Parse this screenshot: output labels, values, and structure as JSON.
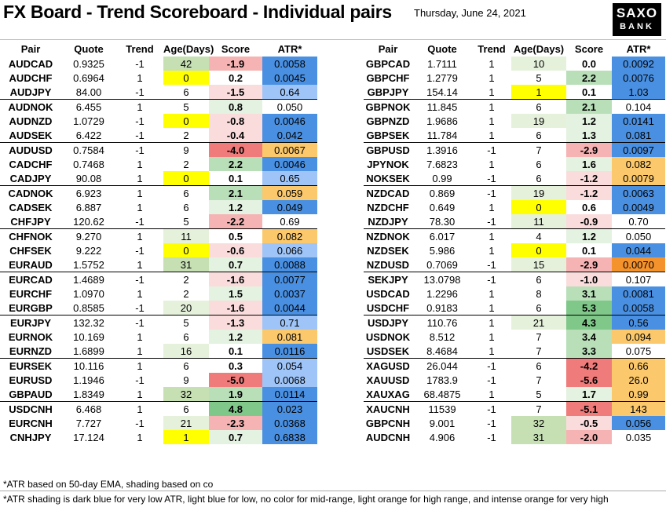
{
  "header": {
    "title": "FX Board - Trend Scoreboard - Individual pairs",
    "date": "Thursday, June 24, 2021",
    "logo_line1": "SAXO",
    "logo_line2": "BANK"
  },
  "columns": [
    "Pair",
    "Quote",
    "Trend",
    "Age(Days)",
    "Score",
    "ATR*"
  ],
  "colors": {
    "score_green_strong": "#7fc88a",
    "score_green": "#b9dfb9",
    "score_green_light": "#e4f2e1",
    "score_red_strong": "#f07b7b",
    "score_red": "#f6b3b3",
    "score_red_light": "#fadcdc",
    "age_green": "#c6e0b4",
    "age_green_light": "#e6f1dc",
    "age_yellow": "#ffff00",
    "atr_dark_blue": "#4a90e2",
    "atr_light_blue": "#9fc5f8",
    "atr_light_orange": "#fbc86b",
    "atr_orange": "#f4922c"
  },
  "left_table": [
    {
      "pair": "AUDCAD",
      "quote": "0.9325",
      "trend": "-1",
      "age": "42",
      "score": "-1.9",
      "atr": "0.0058",
      "age_c": "age_green",
      "score_c": "score_red",
      "atr_c": "atr_dark_blue"
    },
    {
      "pair": "AUDCHF",
      "quote": "0.6964",
      "trend": "1",
      "age": "0",
      "score": "0.2",
      "atr": "0.0045",
      "age_c": "age_yellow",
      "score_c": "",
      "atr_c": "atr_dark_blue"
    },
    {
      "pair": "AUDJPY",
      "quote": "84.00",
      "trend": "-1",
      "age": "6",
      "score": "-1.5",
      "atr": "0.64",
      "age_c": "",
      "score_c": "score_red_light",
      "atr_c": "atr_light_blue"
    },
    {
      "pair": "AUDNOK",
      "quote": "6.455",
      "trend": "1",
      "age": "5",
      "score": "0.8",
      "atr": "0.050",
      "age_c": "",
      "score_c": "score_green_light",
      "atr_c": ""
    },
    {
      "pair": "AUDNZD",
      "quote": "1.0729",
      "trend": "-1",
      "age": "0",
      "score": "-0.8",
      "atr": "0.0046",
      "age_c": "age_yellow",
      "score_c": "score_red_light",
      "atr_c": "atr_dark_blue"
    },
    {
      "pair": "AUDSEK",
      "quote": "6.422",
      "trend": "-1",
      "age": "2",
      "score": "-0.4",
      "atr": "0.042",
      "age_c": "",
      "score_c": "score_red_light",
      "atr_c": "atr_dark_blue"
    },
    {
      "pair": "AUDUSD",
      "quote": "0.7584",
      "trend": "-1",
      "age": "9",
      "score": "-4.0",
      "atr": "0.0067",
      "age_c": "",
      "score_c": "score_red_strong",
      "atr_c": "atr_light_orange"
    },
    {
      "pair": "CADCHF",
      "quote": "0.7468",
      "trend": "1",
      "age": "2",
      "score": "2.2",
      "atr": "0.0046",
      "age_c": "",
      "score_c": "score_green",
      "atr_c": "atr_dark_blue"
    },
    {
      "pair": "CADJPY",
      "quote": "90.08",
      "trend": "1",
      "age": "0",
      "score": "0.1",
      "atr": "0.65",
      "age_c": "age_yellow",
      "score_c": "",
      "atr_c": "atr_light_blue"
    },
    {
      "pair": "CADNOK",
      "quote": "6.923",
      "trend": "1",
      "age": "6",
      "score": "2.1",
      "atr": "0.059",
      "age_c": "",
      "score_c": "score_green",
      "atr_c": "atr_light_orange"
    },
    {
      "pair": "CADSEK",
      "quote": "6.887",
      "trend": "1",
      "age": "6",
      "score": "1.2",
      "atr": "0.049",
      "age_c": "",
      "score_c": "score_green_light",
      "atr_c": "atr_dark_blue"
    },
    {
      "pair": "CHFJPY",
      "quote": "120.62",
      "trend": "-1",
      "age": "5",
      "score": "-2.2",
      "atr": "0.69",
      "age_c": "",
      "score_c": "score_red",
      "atr_c": ""
    },
    {
      "pair": "CHFNOK",
      "quote": "9.270",
      "trend": "1",
      "age": "11",
      "score": "0.5",
      "atr": "0.082",
      "age_c": "age_green_light",
      "score_c": "",
      "atr_c": "atr_light_orange"
    },
    {
      "pair": "CHFSEK",
      "quote": "9.222",
      "trend": "-1",
      "age": "0",
      "score": "-0.6",
      "atr": "0.066",
      "age_c": "age_yellow",
      "score_c": "score_red_light",
      "atr_c": "atr_light_blue"
    },
    {
      "pair": "EURAUD",
      "quote": "1.5752",
      "trend": "1",
      "age": "31",
      "score": "0.7",
      "atr": "0.0088",
      "age_c": "age_green",
      "score_c": "score_green_light",
      "atr_c": "atr_dark_blue"
    },
    {
      "pair": "EURCAD",
      "quote": "1.4689",
      "trend": "-1",
      "age": "2",
      "score": "-1.6",
      "atr": "0.0077",
      "age_c": "",
      "score_c": "score_red_light",
      "atr_c": "atr_dark_blue"
    },
    {
      "pair": "EURCHF",
      "quote": "1.0970",
      "trend": "1",
      "age": "2",
      "score": "1.5",
      "atr": "0.0037",
      "age_c": "",
      "score_c": "score_green_light",
      "atr_c": "atr_dark_blue"
    },
    {
      "pair": "EURGBP",
      "quote": "0.8585",
      "trend": "-1",
      "age": "20",
      "score": "-1.6",
      "atr": "0.0044",
      "age_c": "age_green_light",
      "score_c": "score_red_light",
      "atr_c": "atr_dark_blue"
    },
    {
      "pair": "EURJPY",
      "quote": "132.32",
      "trend": "-1",
      "age": "5",
      "score": "-1.3",
      "atr": "0.71",
      "age_c": "",
      "score_c": "score_red_light",
      "atr_c": "atr_light_blue"
    },
    {
      "pair": "EURNOK",
      "quote": "10.169",
      "trend": "1",
      "age": "6",
      "score": "1.2",
      "atr": "0.081",
      "age_c": "",
      "score_c": "score_green_light",
      "atr_c": "atr_light_orange"
    },
    {
      "pair": "EURNZD",
      "quote": "1.6899",
      "trend": "1",
      "age": "16",
      "score": "0.1",
      "atr": "0.0116",
      "age_c": "age_green_light",
      "score_c": "",
      "atr_c": "atr_dark_blue"
    },
    {
      "pair": "EURSEK",
      "quote": "10.116",
      "trend": "1",
      "age": "6",
      "score": "0.3",
      "atr": "0.054",
      "age_c": "",
      "score_c": "",
      "atr_c": "atr_light_blue"
    },
    {
      "pair": "EURUSD",
      "quote": "1.1946",
      "trend": "-1",
      "age": "9",
      "score": "-5.0",
      "atr": "0.0068",
      "age_c": "",
      "score_c": "score_red_strong",
      "atr_c": "atr_light_blue"
    },
    {
      "pair": "GBPAUD",
      "quote": "1.8349",
      "trend": "1",
      "age": "32",
      "score": "1.9",
      "atr": "0.0114",
      "age_c": "age_green",
      "score_c": "score_green",
      "atr_c": "atr_dark_blue"
    },
    {
      "pair": "USDCNH",
      "quote": "6.468",
      "trend": "1",
      "age": "6",
      "score": "4.8",
      "atr": "0.023",
      "age_c": "",
      "score_c": "score_green_strong",
      "atr_c": "atr_dark_blue"
    },
    {
      "pair": "EURCNH",
      "quote": "7.727",
      "trend": "-1",
      "age": "21",
      "score": "-2.3",
      "atr": "0.0368",
      "age_c": "age_green_light",
      "score_c": "score_red",
      "atr_c": "atr_dark_blue"
    },
    {
      "pair": "CNHJPY",
      "quote": "17.124",
      "trend": "1",
      "age": "1",
      "score": "0.7",
      "atr": "0.6838",
      "age_c": "age_yellow",
      "score_c": "score_green_light",
      "atr_c": "atr_dark_blue"
    }
  ],
  "right_table": [
    {
      "pair": "GBPCAD",
      "quote": "1.7111",
      "trend": "1",
      "age": "10",
      "score": "0.0",
      "atr": "0.0092",
      "age_c": "age_green_light",
      "score_c": "",
      "atr_c": "atr_dark_blue"
    },
    {
      "pair": "GBPCHF",
      "quote": "1.2779",
      "trend": "1",
      "age": "5",
      "score": "2.2",
      "atr": "0.0076",
      "age_c": "",
      "score_c": "score_green",
      "atr_c": "atr_dark_blue"
    },
    {
      "pair": "GBPJPY",
      "quote": "154.14",
      "trend": "1",
      "age": "1",
      "score": "0.1",
      "atr": "1.03",
      "age_c": "age_yellow",
      "score_c": "",
      "atr_c": "atr_dark_blue"
    },
    {
      "pair": "GBPNOK",
      "quote": "11.845",
      "trend": "1",
      "age": "6",
      "score": "2.1",
      "atr": "0.104",
      "age_c": "",
      "score_c": "score_green",
      "atr_c": ""
    },
    {
      "pair": "GBPNZD",
      "quote": "1.9686",
      "trend": "1",
      "age": "19",
      "score": "1.2",
      "atr": "0.0141",
      "age_c": "age_green_light",
      "score_c": "score_green_light",
      "atr_c": "atr_dark_blue"
    },
    {
      "pair": "GBPSEK",
      "quote": "11.784",
      "trend": "1",
      "age": "6",
      "score": "1.3",
      "atr": "0.081",
      "age_c": "",
      "score_c": "score_green_light",
      "atr_c": "atr_dark_blue"
    },
    {
      "pair": "GBPUSD",
      "quote": "1.3916",
      "trend": "-1",
      "age": "7",
      "score": "-2.9",
      "atr": "0.0097",
      "age_c": "",
      "score_c": "score_red",
      "atr_c": "atr_dark_blue"
    },
    {
      "pair": "JPYNOK",
      "quote": "7.6823",
      "trend": "1",
      "age": "6",
      "score": "1.6",
      "atr": "0.082",
      "age_c": "",
      "score_c": "score_green_light",
      "atr_c": "atr_light_orange"
    },
    {
      "pair": "NOKSEK",
      "quote": "0.99",
      "trend": "-1",
      "age": "6",
      "score": "-1.2",
      "atr": "0.0079",
      "age_c": "",
      "score_c": "score_red_light",
      "atr_c": "atr_light_orange"
    },
    {
      "pair": "NZDCAD",
      "quote": "0.869",
      "trend": "-1",
      "age": "19",
      "score": "-1.2",
      "atr": "0.0063",
      "age_c": "age_green_light",
      "score_c": "score_red_light",
      "atr_c": "atr_dark_blue"
    },
    {
      "pair": "NZDCHF",
      "quote": "0.649",
      "trend": "1",
      "age": "0",
      "score": "0.6",
      "atr": "0.0049",
      "age_c": "age_yellow",
      "score_c": "",
      "atr_c": "atr_dark_blue"
    },
    {
      "pair": "NZDJPY",
      "quote": "78.30",
      "trend": "-1",
      "age": "11",
      "score": "-0.9",
      "atr": "0.70",
      "age_c": "age_green_light",
      "score_c": "score_red_light",
      "atr_c": ""
    },
    {
      "pair": "NZDNOK",
      "quote": "6.017",
      "trend": "1",
      "age": "4",
      "score": "1.2",
      "atr": "0.050",
      "age_c": "",
      "score_c": "score_green_light",
      "atr_c": ""
    },
    {
      "pair": "NZDSEK",
      "quote": "5.986",
      "trend": "1",
      "age": "0",
      "score": "0.1",
      "atr": "0.044",
      "age_c": "age_yellow",
      "score_c": "",
      "atr_c": "atr_dark_blue"
    },
    {
      "pair": "NZDUSD",
      "quote": "0.7069",
      "trend": "-1",
      "age": "15",
      "score": "-2.9",
      "atr": "0.0070",
      "age_c": "age_green_light",
      "score_c": "score_red",
      "atr_c": "atr_orange"
    },
    {
      "pair": "SEKJPY",
      "quote": "13.0798",
      "trend": "-1",
      "age": "6",
      "score": "-1.0",
      "atr": "0.107",
      "age_c": "",
      "score_c": "score_red_light",
      "atr_c": ""
    },
    {
      "pair": "USDCAD",
      "quote": "1.2296",
      "trend": "1",
      "age": "8",
      "score": "3.1",
      "atr": "0.0081",
      "age_c": "",
      "score_c": "score_green",
      "atr_c": "atr_dark_blue"
    },
    {
      "pair": "USDCHF",
      "quote": "0.9183",
      "trend": "1",
      "age": "6",
      "score": "5.3",
      "atr": "0.0058",
      "age_c": "",
      "score_c": "score_green_strong",
      "atr_c": "atr_dark_blue"
    },
    {
      "pair": "USDJPY",
      "quote": "110.76",
      "trend": "1",
      "age": "21",
      "score": "4.3",
      "atr": "0.56",
      "age_c": "age_green_light",
      "score_c": "score_green_strong",
      "atr_c": "atr_dark_blue"
    },
    {
      "pair": "USDNOK",
      "quote": "8.512",
      "trend": "1",
      "age": "7",
      "score": "3.4",
      "atr": "0.094",
      "age_c": "",
      "score_c": "score_green",
      "atr_c": "atr_light_orange"
    },
    {
      "pair": "USDSEK",
      "quote": "8.4684",
      "trend": "1",
      "age": "7",
      "score": "3.3",
      "atr": "0.075",
      "age_c": "",
      "score_c": "score_green",
      "atr_c": ""
    },
    {
      "pair": "XAGUSD",
      "quote": "26.044",
      "trend": "-1",
      "age": "6",
      "score": "-4.2",
      "atr": "0.66",
      "age_c": "",
      "score_c": "score_red_strong",
      "atr_c": "atr_light_orange"
    },
    {
      "pair": "XAUUSD",
      "quote": "1783.9",
      "trend": "-1",
      "age": "7",
      "score": "-5.6",
      "atr": "26.0",
      "age_c": "",
      "score_c": "score_red_strong",
      "atr_c": "atr_light_orange"
    },
    {
      "pair": "XAUXAG",
      "quote": "68.4875",
      "trend": "1",
      "age": "5",
      "score": "1.7",
      "atr": "0.99",
      "age_c": "",
      "score_c": "score_green_light",
      "atr_c": "atr_light_orange"
    },
    {
      "pair": "XAUCNH",
      "quote": "11539",
      "trend": "-1",
      "age": "7",
      "score": "-5.1",
      "atr": "143",
      "age_c": "",
      "score_c": "score_red_strong",
      "atr_c": "atr_light_orange"
    },
    {
      "pair": "GBPCNH",
      "quote": "9.001",
      "trend": "-1",
      "age": "32",
      "score": "-0.5",
      "atr": "0.056",
      "age_c": "age_green",
      "score_c": "score_red_light",
      "atr_c": "atr_dark_blue"
    },
    {
      "pair": "AUDCNH",
      "quote": "4.906",
      "trend": "-1",
      "age": "31",
      "score": "-2.0",
      "atr": "0.035",
      "age_c": "age_green",
      "score_c": "score_red",
      "atr_c": ""
    }
  ],
  "footnotes": {
    "note1": "*ATR based on 50-day EMA, shading based on co",
    "note2": "*ATR shading is dark blue for very low ATR, light blue for low, no color for mid-range, light orange for high range, and intense orange for very high"
  }
}
